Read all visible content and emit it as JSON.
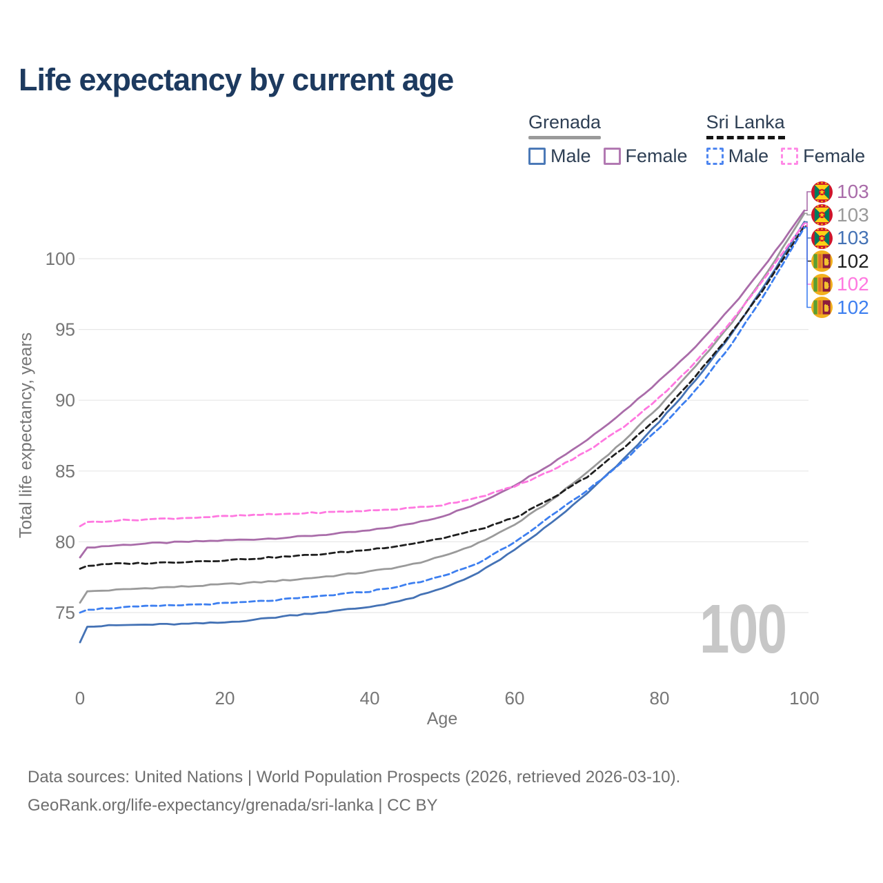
{
  "title": "Life expectancy by current age",
  "legend": {
    "groups": [
      {
        "label": "Grenada",
        "line_style": "solid",
        "line_color": "#9a9a9a",
        "items": [
          {
            "label": "Male",
            "color": "#4b79b7",
            "dash": false
          },
          {
            "label": "Female",
            "color": "#b279b2",
            "dash": false
          }
        ]
      },
      {
        "label": "Sri Lanka",
        "line_style": "dashed",
        "line_color": "#141414",
        "items": [
          {
            "label": "Male",
            "color": "#4e86f0",
            "dash": true
          },
          {
            "label": "Female",
            "color": "#ff8ae6",
            "dash": true
          }
        ]
      }
    ]
  },
  "watermark": "100",
  "footer": {
    "line1": "Data sources: United Nations | World Population Prospects (2026, retrieved 2026-03-10).",
    "line2": "GeoRank.org/life-expectancy/grenada/sri-lanka | CC BY"
  },
  "chart_data": {
    "type": "line",
    "title": "Life expectancy by current age",
    "xlabel": "Age",
    "ylabel": "Total life expectancy, years",
    "xlim": [
      0,
      100
    ],
    "ylim": [
      72,
      104
    ],
    "x_ticks": [
      0,
      20,
      40,
      60,
      80,
      100
    ],
    "y_ticks": [
      75,
      80,
      85,
      90,
      95,
      100
    ],
    "grid": "horizontal",
    "x": [
      0,
      1,
      5,
      10,
      15,
      20,
      25,
      30,
      35,
      40,
      45,
      50,
      55,
      60,
      65,
      70,
      75,
      80,
      85,
      90,
      95,
      100
    ],
    "series": [
      {
        "name": "Grenada Female",
        "country": "Grenada",
        "sex": "Female",
        "color": "#a96ca9",
        "dash": false,
        "flag": "grenada",
        "end_label": "103",
        "values": [
          78.9,
          79.6,
          79.75,
          79.9,
          80.0,
          80.1,
          80.2,
          80.35,
          80.55,
          80.8,
          81.2,
          81.8,
          82.7,
          84.0,
          85.5,
          87.2,
          89.2,
          91.4,
          93.8,
          96.6,
          99.8,
          103.4
        ]
      },
      {
        "name": "Grenada Total",
        "country": "Grenada",
        "sex": "Total",
        "color": "#9a9a9a",
        "dash": false,
        "flag": "grenada",
        "end_label": "103",
        "values": [
          75.7,
          76.5,
          76.6,
          76.75,
          76.85,
          77.0,
          77.15,
          77.35,
          77.6,
          77.9,
          78.3,
          78.95,
          79.9,
          81.2,
          82.9,
          84.9,
          87.1,
          89.6,
          92.4,
          95.5,
          99.1,
          103.2
        ]
      },
      {
        "name": "Grenada Male",
        "country": "Grenada",
        "sex": "Male",
        "color": "#4472b5",
        "dash": false,
        "flag": "grenada",
        "end_label": "103",
        "values": [
          72.9,
          74.0,
          74.1,
          74.15,
          74.2,
          74.3,
          74.55,
          74.85,
          75.1,
          75.4,
          75.9,
          76.7,
          77.8,
          79.4,
          81.3,
          83.4,
          85.8,
          88.5,
          91.4,
          94.7,
          98.5,
          102.6
        ]
      },
      {
        "name": "Sri Lanka Total",
        "country": "Sri Lanka",
        "sex": "Total",
        "color": "#1f1f1f",
        "dash": true,
        "flag": "sri-lanka",
        "end_label": "102",
        "values": [
          78.1,
          78.3,
          78.45,
          78.5,
          78.6,
          78.7,
          78.85,
          79.0,
          79.2,
          79.45,
          79.8,
          80.25,
          80.85,
          81.7,
          83.0,
          84.6,
          86.6,
          88.9,
          91.7,
          94.8,
          98.3,
          102.3
        ]
      },
      {
        "name": "Sri Lanka Female",
        "country": "Sri Lanka",
        "sex": "Female",
        "color": "#ff78e0",
        "dash": true,
        "flag": "sri-lanka",
        "end_label": "102",
        "values": [
          81.1,
          81.4,
          81.5,
          81.6,
          81.7,
          81.8,
          81.9,
          82.0,
          82.1,
          82.2,
          82.35,
          82.6,
          83.15,
          83.9,
          85.0,
          86.4,
          88.1,
          90.2,
          92.7,
          95.6,
          99.0,
          102.5
        ]
      },
      {
        "name": "Sri Lanka Male",
        "country": "Sri Lanka",
        "sex": "Male",
        "color": "#3d7ff0",
        "dash": true,
        "flag": "sri-lanka",
        "end_label": "102",
        "values": [
          75.0,
          75.2,
          75.35,
          75.45,
          75.55,
          75.65,
          75.8,
          76.0,
          76.25,
          76.5,
          76.95,
          77.55,
          78.5,
          80.0,
          81.8,
          83.6,
          85.7,
          88.0,
          90.7,
          94.0,
          97.9,
          102.2
        ]
      }
    ]
  }
}
